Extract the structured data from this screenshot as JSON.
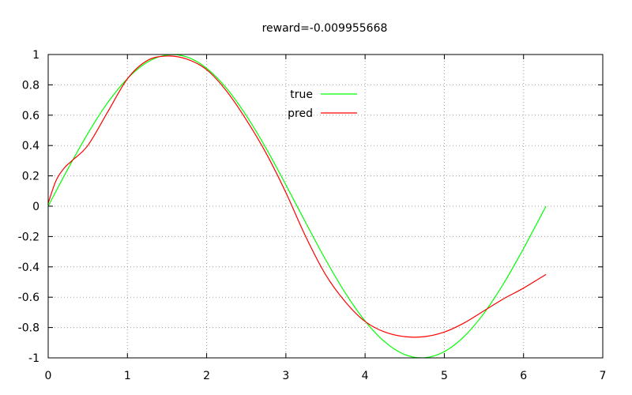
{
  "chart_data": {
    "type": "line",
    "title": "reward=-0.009955668",
    "xlabel": "",
    "ylabel": "",
    "xlim": [
      0,
      7
    ],
    "ylim": [
      -1,
      1
    ],
    "xticks": [
      "0",
      "1",
      "2",
      "3",
      "4",
      "5",
      "6",
      "7"
    ],
    "yticks": [
      "1",
      "0.8",
      "0.6",
      "0.4",
      "0.2",
      "0",
      "-0.2",
      "-0.4",
      "-0.6",
      "-0.8",
      "-1"
    ],
    "grid": true,
    "legend_position": "top-center",
    "series": [
      {
        "name": "true",
        "color": "#00ff00",
        "x": [
          0,
          0.25,
          0.5,
          0.75,
          1.0,
          1.25,
          1.5,
          1.75,
          2.0,
          2.25,
          2.5,
          2.75,
          3.0,
          3.25,
          3.5,
          3.75,
          4.0,
          4.25,
          4.5,
          4.75,
          5.0,
          5.25,
          5.5,
          5.75,
          6.0,
          6.283
        ],
        "y": [
          0,
          0.247,
          0.479,
          0.682,
          0.841,
          0.949,
          0.997,
          0.984,
          0.909,
          0.778,
          0.598,
          0.382,
          0.141,
          -0.108,
          -0.351,
          -0.572,
          -0.757,
          -0.895,
          -0.978,
          -0.999,
          -0.959,
          -0.859,
          -0.706,
          -0.508,
          -0.279,
          0
        ]
      },
      {
        "name": "pred",
        "color": "#ff0000",
        "x": [
          0,
          0.1,
          0.2,
          0.3,
          0.5,
          0.75,
          1.0,
          1.25,
          1.5,
          1.75,
          2.0,
          2.25,
          2.5,
          2.75,
          3.0,
          3.25,
          3.5,
          3.75,
          4.0,
          4.25,
          4.5,
          4.75,
          5.0,
          5.25,
          5.5,
          5.75,
          6.0,
          6.283
        ],
        "y": [
          0.02,
          0.17,
          0.25,
          0.3,
          0.4,
          0.62,
          0.84,
          0.96,
          0.99,
          0.97,
          0.9,
          0.76,
          0.57,
          0.35,
          0.09,
          -0.2,
          -0.45,
          -0.63,
          -0.76,
          -0.83,
          -0.86,
          -0.86,
          -0.83,
          -0.77,
          -0.69,
          -0.61,
          -0.54,
          -0.45
        ]
      }
    ]
  }
}
